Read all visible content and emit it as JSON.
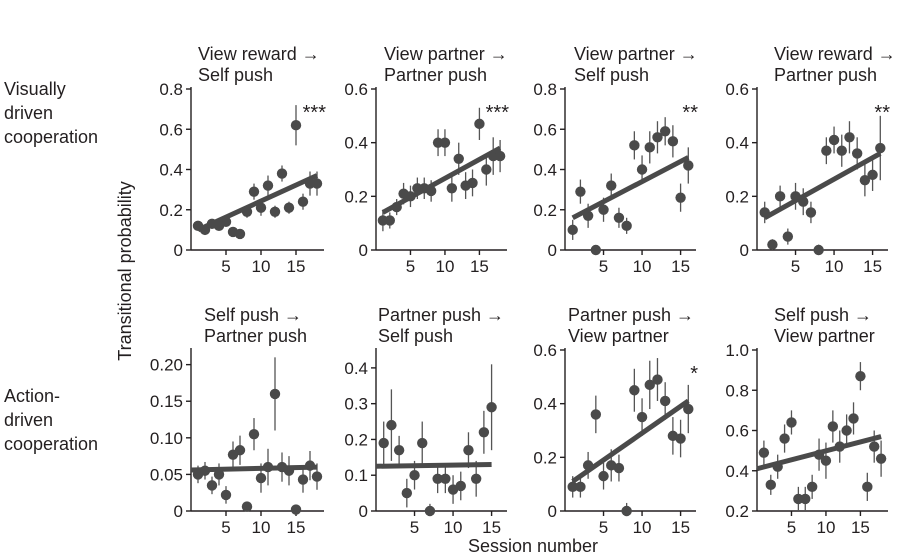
{
  "figure": {
    "row_labels": [
      [
        "Visually",
        "driven",
        "cooperation"
      ],
      [
        "Action-",
        "driven",
        "cooperation"
      ]
    ],
    "y_axis_label": "Transitional probability",
    "x_axis_label": "Session number",
    "colors": {
      "points": "#4a4a4a",
      "fit_line": "#4a4a4a",
      "axis": "#231f20",
      "error_bars": "#555555"
    }
  },
  "chart_data": [
    {
      "type": "scatter",
      "title": [
        "View reward →",
        "Self push"
      ],
      "xlim": [
        0,
        19
      ],
      "ylim": [
        0,
        0.8
      ],
      "xticks": [
        5,
        10,
        15
      ],
      "yticks": [
        0,
        0.2,
        0.4,
        0.6,
        0.8
      ],
      "ytick_labels": [
        "0",
        "0.2",
        "0.4",
        "0.6",
        "0.8"
      ],
      "significance": "***",
      "points": [
        {
          "x": 1,
          "y": 0.12,
          "err": 0.02
        },
        {
          "x": 2,
          "y": 0.1,
          "err": 0.02
        },
        {
          "x": 3,
          "y": 0.13,
          "err": 0.02
        },
        {
          "x": 4,
          "y": 0.12,
          "err": 0.02
        },
        {
          "x": 5,
          "y": 0.14,
          "err": 0.02
        },
        {
          "x": 6,
          "y": 0.09,
          "err": 0.02
        },
        {
          "x": 7,
          "y": 0.08,
          "err": 0.02
        },
        {
          "x": 8,
          "y": 0.19,
          "err": 0.03
        },
        {
          "x": 9,
          "y": 0.29,
          "err": 0.04
        },
        {
          "x": 10,
          "y": 0.21,
          "err": 0.04
        },
        {
          "x": 11,
          "y": 0.32,
          "err": 0.05
        },
        {
          "x": 12,
          "y": 0.19,
          "err": 0.03
        },
        {
          "x": 13,
          "y": 0.38,
          "err": 0.04
        },
        {
          "x": 14,
          "y": 0.21,
          "err": 0.03
        },
        {
          "x": 15,
          "y": 0.62,
          "err": 0.1
        },
        {
          "x": 16,
          "y": 0.24,
          "err": 0.04
        },
        {
          "x": 17,
          "y": 0.33,
          "err": 0.06
        },
        {
          "x": 18,
          "y": 0.33,
          "err": 0.06
        }
      ],
      "fit": {
        "x": [
          1,
          18
        ],
        "y": [
          0.1,
          0.37
        ]
      }
    },
    {
      "type": "scatter",
      "title": [
        "View partner →",
        "Partner push"
      ],
      "xlim": [
        0,
        19
      ],
      "ylim": [
        0,
        0.6
      ],
      "xticks": [
        5,
        10,
        15
      ],
      "yticks": [
        0,
        0.2,
        0.4,
        0.6
      ],
      "ytick_labels": [
        "0",
        "0.2",
        "0.4",
        "0.6"
      ],
      "significance": "***",
      "points": [
        {
          "x": 1,
          "y": 0.11,
          "err": 0.04
        },
        {
          "x": 2,
          "y": 0.11,
          "err": 0.03
        },
        {
          "x": 3,
          "y": 0.16,
          "err": 0.03
        },
        {
          "x": 4,
          "y": 0.21,
          "err": 0.04
        },
        {
          "x": 5,
          "y": 0.2,
          "err": 0.04
        },
        {
          "x": 6,
          "y": 0.23,
          "err": 0.04
        },
        {
          "x": 7,
          "y": 0.23,
          "err": 0.04
        },
        {
          "x": 8,
          "y": 0.22,
          "err": 0.04
        },
        {
          "x": 9,
          "y": 0.4,
          "err": 0.05
        },
        {
          "x": 10,
          "y": 0.4,
          "err": 0.05
        },
        {
          "x": 11,
          "y": 0.23,
          "err": 0.05
        },
        {
          "x": 12,
          "y": 0.34,
          "err": 0.06
        },
        {
          "x": 13,
          "y": 0.24,
          "err": 0.05
        },
        {
          "x": 14,
          "y": 0.25,
          "err": 0.05
        },
        {
          "x": 15,
          "y": 0.47,
          "err": 0.06
        },
        {
          "x": 16,
          "y": 0.3,
          "err": 0.06
        },
        {
          "x": 17,
          "y": 0.35,
          "err": 0.07
        },
        {
          "x": 18,
          "y": 0.35,
          "err": 0.06
        }
      ],
      "fit": {
        "x": [
          1,
          18
        ],
        "y": [
          0.14,
          0.38
        ]
      }
    },
    {
      "type": "scatter",
      "title": [
        "View partner →",
        "Self push"
      ],
      "xlim": [
        0,
        17
      ],
      "ylim": [
        0,
        0.8
      ],
      "xticks": [
        5,
        10,
        15
      ],
      "yticks": [
        0,
        0.2,
        0.4,
        0.6,
        0.8
      ],
      "ytick_labels": [
        "0",
        "0.2",
        "0.4",
        "0.6",
        "0.8"
      ],
      "significance": "**",
      "points": [
        {
          "x": 1,
          "y": 0.1,
          "err": 0.05
        },
        {
          "x": 2,
          "y": 0.29,
          "err": 0.06
        },
        {
          "x": 3,
          "y": 0.17,
          "err": 0.06
        },
        {
          "x": 4,
          "y": 0.0,
          "err": 0.02
        },
        {
          "x": 5,
          "y": 0.2,
          "err": 0.06
        },
        {
          "x": 6,
          "y": 0.32,
          "err": 0.06
        },
        {
          "x": 7,
          "y": 0.16,
          "err": 0.05
        },
        {
          "x": 8,
          "y": 0.12,
          "err": 0.04
        },
        {
          "x": 9,
          "y": 0.52,
          "err": 0.07
        },
        {
          "x": 10,
          "y": 0.4,
          "err": 0.07
        },
        {
          "x": 11,
          "y": 0.51,
          "err": 0.08
        },
        {
          "x": 12,
          "y": 0.56,
          "err": 0.08
        },
        {
          "x": 13,
          "y": 0.59,
          "err": 0.07
        },
        {
          "x": 14,
          "y": 0.54,
          "err": 0.08
        },
        {
          "x": 15,
          "y": 0.26,
          "err": 0.07
        },
        {
          "x": 16,
          "y": 0.42,
          "err": 0.09
        }
      ],
      "fit": {
        "x": [
          1,
          16
        ],
        "y": [
          0.16,
          0.46
        ]
      }
    },
    {
      "type": "scatter",
      "title": [
        "View reward →",
        "Partner push"
      ],
      "xlim": [
        0,
        17
      ],
      "ylim": [
        0,
        0.6
      ],
      "xticks": [
        5,
        10,
        15
      ],
      "yticks": [
        0,
        0.2,
        0.4,
        0.6
      ],
      "ytick_labels": [
        "0",
        "0.2",
        "0.4",
        "0.6"
      ],
      "significance": "**",
      "points": [
        {
          "x": 1,
          "y": 0.14,
          "err": 0.04
        },
        {
          "x": 2,
          "y": 0.02,
          "err": 0.02
        },
        {
          "x": 3,
          "y": 0.2,
          "err": 0.04
        },
        {
          "x": 4,
          "y": 0.05,
          "err": 0.03
        },
        {
          "x": 5,
          "y": 0.2,
          "err": 0.05
        },
        {
          "x": 6,
          "y": 0.18,
          "err": 0.05
        },
        {
          "x": 7,
          "y": 0.14,
          "err": 0.04
        },
        {
          "x": 8,
          "y": 0.0,
          "err": 0.02
        },
        {
          "x": 9,
          "y": 0.37,
          "err": 0.05
        },
        {
          "x": 10,
          "y": 0.41,
          "err": 0.05
        },
        {
          "x": 11,
          "y": 0.37,
          "err": 0.06
        },
        {
          "x": 12,
          "y": 0.42,
          "err": 0.06
        },
        {
          "x": 13,
          "y": 0.36,
          "err": 0.06
        },
        {
          "x": 14,
          "y": 0.26,
          "err": 0.06
        },
        {
          "x": 15,
          "y": 0.28,
          "err": 0.06
        },
        {
          "x": 16,
          "y": 0.38,
          "err": 0.12
        }
      ],
      "fit": {
        "x": [
          1,
          16
        ],
        "y": [
          0.12,
          0.36
        ]
      }
    },
    {
      "type": "scatter",
      "title": [
        "Self push →",
        "Partner push"
      ],
      "xlim": [
        0,
        19
      ],
      "ylim": [
        0,
        0.22
      ],
      "xticks": [
        5,
        10,
        15
      ],
      "yticks": [
        0,
        0.05,
        0.1,
        0.15,
        0.2
      ],
      "ytick_labels": [
        "0",
        "0.05",
        "0.10",
        "0.15",
        "0.20"
      ],
      "significance": "",
      "points": [
        {
          "x": 1,
          "y": 0.05,
          "err": 0.012
        },
        {
          "x": 2,
          "y": 0.055,
          "err": 0.012
        },
        {
          "x": 3,
          "y": 0.035,
          "err": 0.012
        },
        {
          "x": 4,
          "y": 0.05,
          "err": 0.015
        },
        {
          "x": 5,
          "y": 0.022,
          "err": 0.012
        },
        {
          "x": 6,
          "y": 0.077,
          "err": 0.018
        },
        {
          "x": 7,
          "y": 0.083,
          "err": 0.02
        },
        {
          "x": 8,
          "y": 0.006,
          "err": 0.005
        },
        {
          "x": 9,
          "y": 0.105,
          "err": 0.022
        },
        {
          "x": 10,
          "y": 0.045,
          "err": 0.02
        },
        {
          "x": 11,
          "y": 0.06,
          "err": 0.025
        },
        {
          "x": 12,
          "y": 0.16,
          "err": 0.05
        },
        {
          "x": 13,
          "y": 0.06,
          "err": 0.02
        },
        {
          "x": 14,
          "y": 0.055,
          "err": 0.02
        },
        {
          "x": 15,
          "y": 0.002,
          "err": 0.004
        },
        {
          "x": 16,
          "y": 0.043,
          "err": 0.018
        },
        {
          "x": 17,
          "y": 0.062,
          "err": 0.02
        },
        {
          "x": 18,
          "y": 0.047,
          "err": 0.018
        }
      ],
      "fit": {
        "x": [
          0,
          18
        ],
        "y": [
          0.056,
          0.06
        ]
      }
    },
    {
      "type": "scatter",
      "title": [
        "Partner push →",
        "Self push"
      ],
      "xlim": [
        0,
        17
      ],
      "ylim": [
        0,
        0.45
      ],
      "xticks": [
        5,
        10,
        15
      ],
      "yticks": [
        0,
        0.1,
        0.2,
        0.3,
        0.4
      ],
      "ytick_labels": [
        "0",
        "0.1",
        "0.2",
        "0.3",
        "0.4"
      ],
      "significance": "",
      "points": [
        {
          "x": 1,
          "y": 0.19,
          "err": 0.06
        },
        {
          "x": 2,
          "y": 0.24,
          "err": 0.1
        },
        {
          "x": 3,
          "y": 0.17,
          "err": 0.04
        },
        {
          "x": 4,
          "y": 0.05,
          "err": 0.04
        },
        {
          "x": 5,
          "y": 0.1,
          "err": 0.04
        },
        {
          "x": 6,
          "y": 0.19,
          "err": 0.06
        },
        {
          "x": 7,
          "y": 0.0,
          "err": 0.02
        },
        {
          "x": 8,
          "y": 0.09,
          "err": 0.04
        },
        {
          "x": 9,
          "y": 0.09,
          "err": 0.04
        },
        {
          "x": 10,
          "y": 0.06,
          "err": 0.04
        },
        {
          "x": 11,
          "y": 0.07,
          "err": 0.04
        },
        {
          "x": 12,
          "y": 0.17,
          "err": 0.05
        },
        {
          "x": 13,
          "y": 0.09,
          "err": 0.05
        },
        {
          "x": 14,
          "y": 0.22,
          "err": 0.06
        },
        {
          "x": 15,
          "y": 0.29,
          "err": 0.12
        }
      ],
      "fit": {
        "x": [
          0,
          15
        ],
        "y": [
          0.125,
          0.13
        ]
      }
    },
    {
      "type": "scatter",
      "title": [
        "Partner push →",
        "View partner"
      ],
      "xlim": [
        0,
        17
      ],
      "ylim": [
        0,
        0.6
      ],
      "xticks": [
        5,
        10,
        15
      ],
      "yticks": [
        0,
        0.2,
        0.4,
        0.6
      ],
      "ytick_labels": [
        "0",
        "0.2",
        "0.4",
        "0.6"
      ],
      "significance": "*",
      "points": [
        {
          "x": 1,
          "y": 0.09,
          "err": 0.04
        },
        {
          "x": 2,
          "y": 0.09,
          "err": 0.04
        },
        {
          "x": 3,
          "y": 0.17,
          "err": 0.05
        },
        {
          "x": 4,
          "y": 0.36,
          "err": 0.07
        },
        {
          "x": 5,
          "y": 0.13,
          "err": 0.05
        },
        {
          "x": 6,
          "y": 0.17,
          "err": 0.06
        },
        {
          "x": 7,
          "y": 0.16,
          "err": 0.05
        },
        {
          "x": 8,
          "y": 0.0,
          "err": 0.03
        },
        {
          "x": 9,
          "y": 0.45,
          "err": 0.08
        },
        {
          "x": 10,
          "y": 0.35,
          "err": 0.07
        },
        {
          "x": 11,
          "y": 0.47,
          "err": 0.09
        },
        {
          "x": 12,
          "y": 0.49,
          "err": 0.08
        },
        {
          "x": 13,
          "y": 0.41,
          "err": 0.07
        },
        {
          "x": 14,
          "y": 0.28,
          "err": 0.07
        },
        {
          "x": 15,
          "y": 0.27,
          "err": 0.07
        },
        {
          "x": 16,
          "y": 0.38,
          "err": 0.09
        }
      ],
      "fit": {
        "x": [
          1,
          16
        ],
        "y": [
          0.11,
          0.41
        ]
      }
    },
    {
      "type": "scatter",
      "title": [
        "Self push →",
        "View partner"
      ],
      "xlim": [
        0,
        19
      ],
      "ylim": [
        0.2,
        1.0
      ],
      "xticks": [
        5,
        10,
        15
      ],
      "yticks": [
        0.2,
        0.4,
        0.6,
        0.8,
        1.0
      ],
      "ytick_labels": [
        "0.2",
        "0.4",
        "0.6",
        "0.8",
        "1.0"
      ],
      "significance": "",
      "points": [
        {
          "x": 1,
          "y": 0.49,
          "err": 0.06
        },
        {
          "x": 2,
          "y": 0.33,
          "err": 0.05
        },
        {
          "x": 3,
          "y": 0.42,
          "err": 0.06
        },
        {
          "x": 4,
          "y": 0.56,
          "err": 0.07
        },
        {
          "x": 5,
          "y": 0.64,
          "err": 0.06
        },
        {
          "x": 6,
          "y": 0.26,
          "err": 0.06
        },
        {
          "x": 7,
          "y": 0.26,
          "err": 0.06
        },
        {
          "x": 8,
          "y": 0.32,
          "err": 0.06
        },
        {
          "x": 9,
          "y": 0.48,
          "err": 0.08
        },
        {
          "x": 10,
          "y": 0.45,
          "err": 0.09
        },
        {
          "x": 11,
          "y": 0.62,
          "err": 0.08
        },
        {
          "x": 12,
          "y": 0.52,
          "err": 0.08
        },
        {
          "x": 13,
          "y": 0.6,
          "err": 0.08
        },
        {
          "x": 14,
          "y": 0.66,
          "err": 0.08
        },
        {
          "x": 15,
          "y": 0.87,
          "err": 0.07
        },
        {
          "x": 16,
          "y": 0.32,
          "err": 0.07
        },
        {
          "x": 17,
          "y": 0.52,
          "err": 0.08
        },
        {
          "x": 18,
          "y": 0.46,
          "err": 0.09
        }
      ],
      "fit": {
        "x": [
          0,
          18
        ],
        "y": [
          0.41,
          0.57
        ]
      }
    }
  ]
}
